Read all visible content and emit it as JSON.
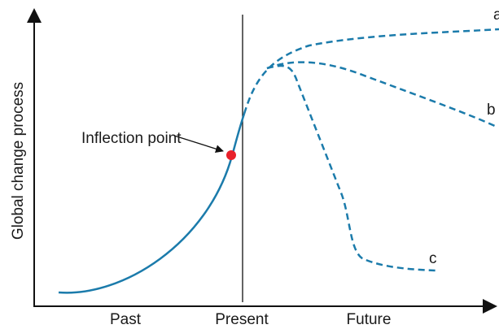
{
  "axes": {
    "y_label": "Global change process",
    "x_labels": [
      "Past",
      "Present",
      "Future"
    ]
  },
  "annotation": "Inflection point",
  "curves": [
    {
      "label": "a"
    },
    {
      "label": "b"
    },
    {
      "label": "c"
    }
  ]
}
